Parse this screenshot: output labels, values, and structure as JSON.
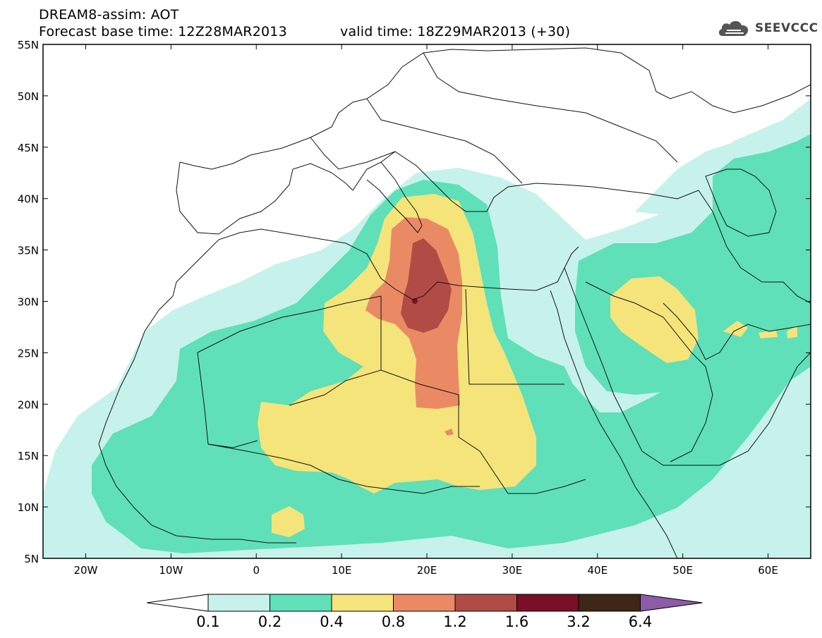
{
  "header": {
    "line1": "DREAM8-assim: AOT",
    "line2": "Forecast base time: 12Z28MAR2013",
    "valid": "valid time: 18Z29MAR2013 (+30)",
    "logo_text": "SEEVCCC",
    "logo_icon": "cloud-icon"
  },
  "map": {
    "lat_labels": [
      "55N",
      "50N",
      "45N",
      "40N",
      "35N",
      "30N",
      "25N",
      "20N",
      "15N",
      "10N",
      "5N"
    ],
    "lon_labels": [
      "20W",
      "10W",
      "0",
      "10E",
      "20E",
      "30E",
      "40E",
      "50E",
      "60E"
    ],
    "lon_range": [
      -25,
      65
    ],
    "lat_range": [
      5,
      55
    ]
  },
  "legend": {
    "values": [
      "0.1",
      "0.2",
      "0.4",
      "0.8",
      "1.2",
      "1.6",
      "3.2",
      "6.4"
    ],
    "colors": [
      "#ffffff",
      "#c6f2eb",
      "#5fe0b9",
      "#f5e47a",
      "#ea8a65",
      "#b04c45",
      "#7a0f26",
      "#3e2716",
      "#8c5ca5"
    ]
  },
  "colors": {
    "c1": "#c6f2eb",
    "c2": "#5fe0b9",
    "c3": "#f5e47a",
    "c4": "#ea8a65",
    "c5": "#b04c45",
    "c6": "#7a0f26"
  }
}
